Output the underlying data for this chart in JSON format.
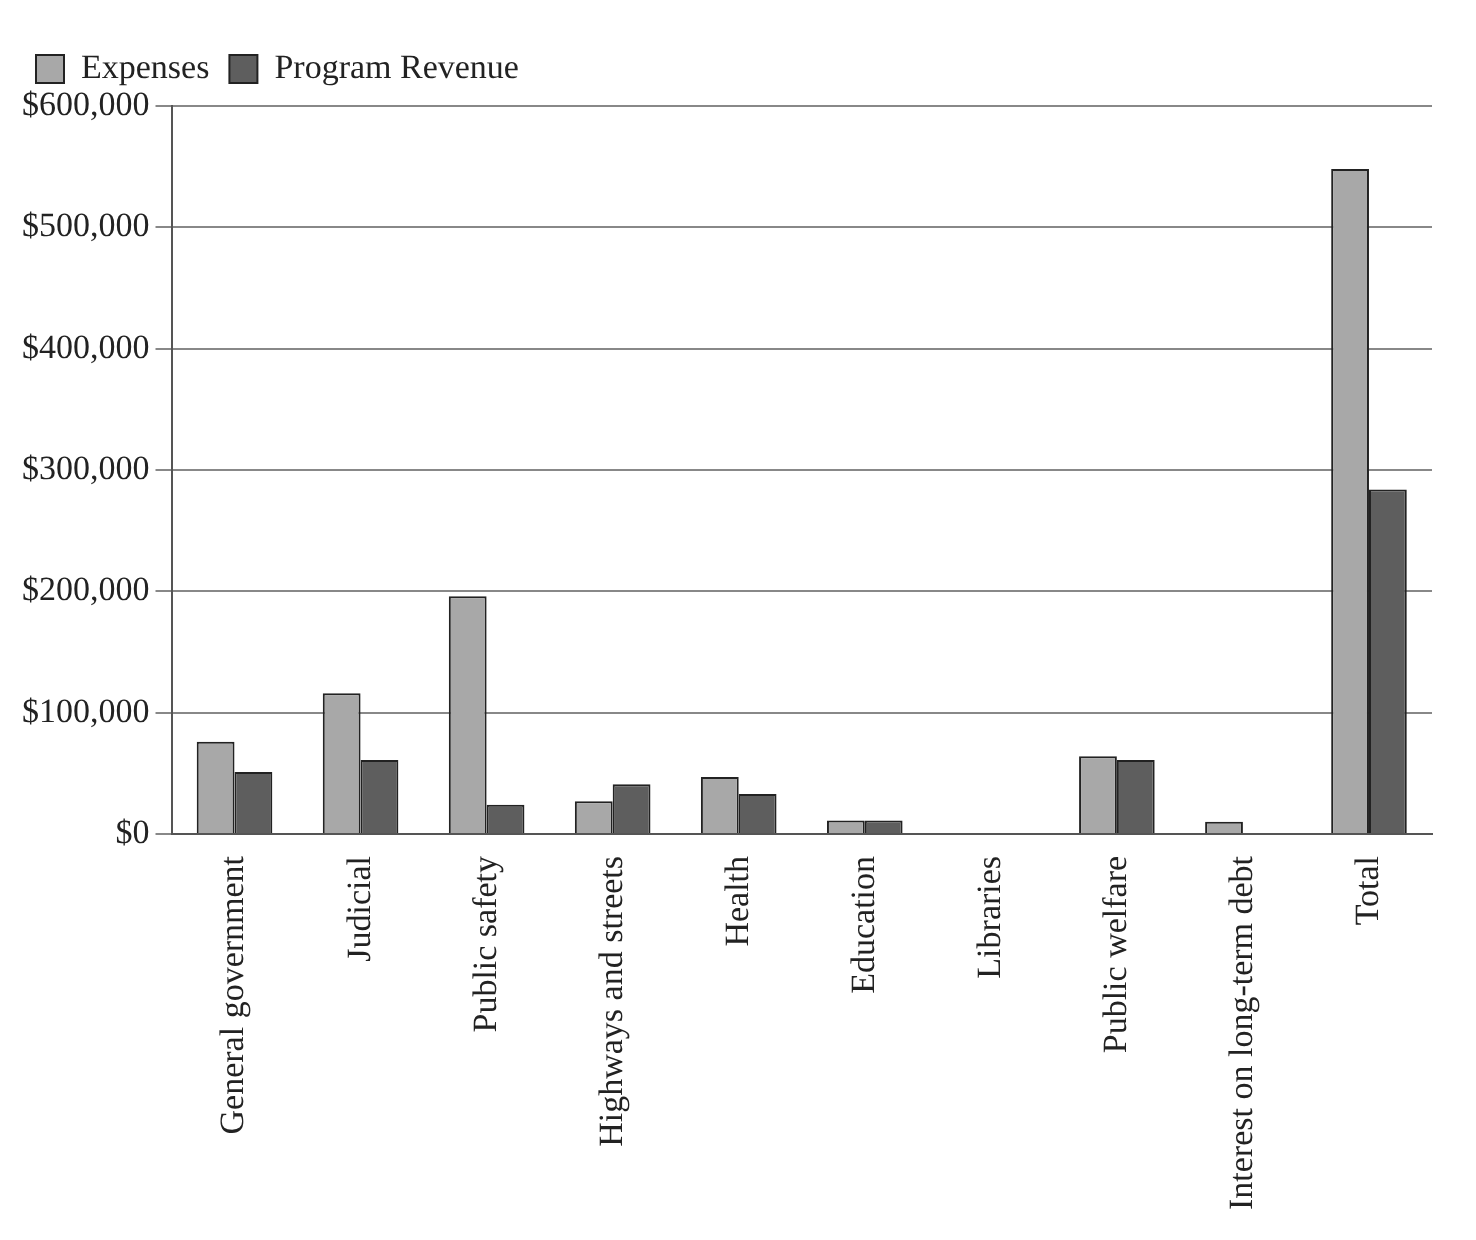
{
  "chart_data": {
    "type": "bar",
    "categories": [
      "General government",
      "Judicial",
      "Public safety",
      "Highways and streets",
      "Health",
      "Education",
      "Libraries",
      "Public welfare",
      "Interest on long-term debt",
      "Total"
    ],
    "series": [
      {
        "name": "Expenses",
        "color": "#a8a8a8",
        "values": [
          76000,
          116000,
          196000,
          27000,
          47000,
          11000,
          0,
          64000,
          10000,
          548000
        ]
      },
      {
        "name": "Program Revenue",
        "color": "#5e5e5e",
        "values": [
          51000,
          61000,
          24000,
          41000,
          33000,
          11000,
          0,
          61000,
          0,
          284000
        ]
      }
    ],
    "ylim": [
      0,
      600000
    ],
    "yticks": [
      {
        "value": 0,
        "label": "$0"
      },
      {
        "value": 100000,
        "label": "$100,000"
      },
      {
        "value": 200000,
        "label": "$200,000"
      },
      {
        "value": 300000,
        "label": "$300,000"
      },
      {
        "value": 400000,
        "label": "$400,000"
      },
      {
        "value": 500000,
        "label": "$500,000"
      },
      {
        "value": 600000,
        "label": "$600,000"
      }
    ],
    "grid": "y",
    "legend": "top left"
  }
}
